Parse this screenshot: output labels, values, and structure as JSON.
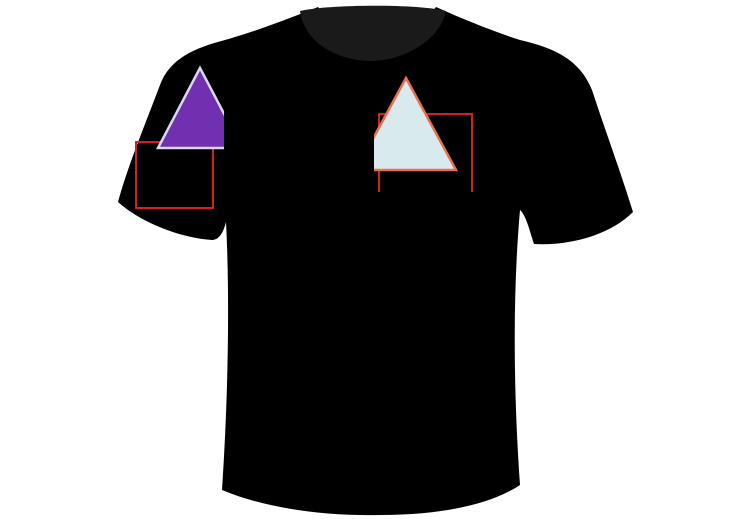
{
  "garment": {
    "type": "t-shirt",
    "body_color": "#000000",
    "collar_color": "#1a1a1a"
  },
  "graphics": {
    "left_sleeve_triangle": {
      "fill": "#7030b0",
      "stroke": "#d8d8ee"
    },
    "left_sleeve_frame": {
      "stroke": "#d42020"
    },
    "chest_triangle": {
      "fill": "#d8eaee",
      "stroke": "#e8704a"
    },
    "chest_frame": {
      "stroke": "#d42020"
    }
  }
}
